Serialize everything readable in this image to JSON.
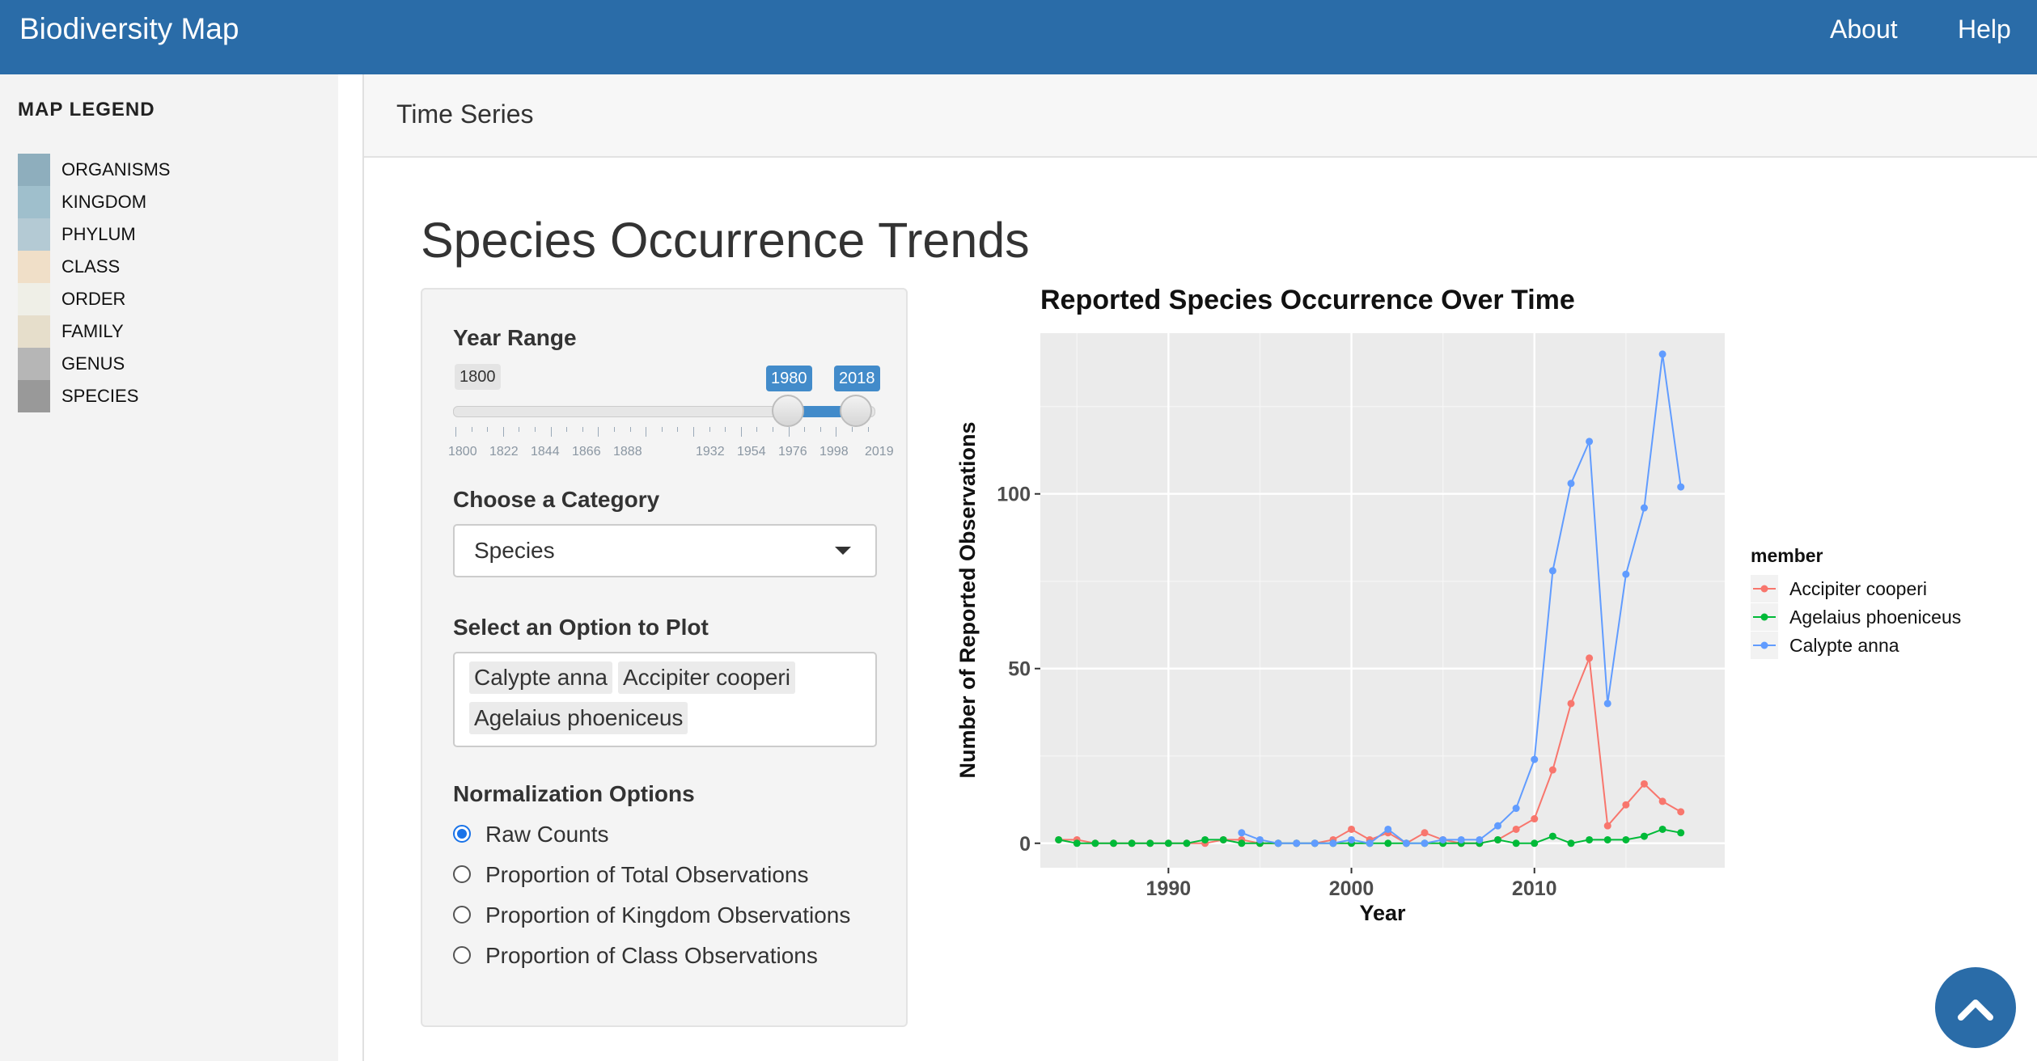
{
  "navbar": {
    "brand": "Biodiversity Map",
    "links": [
      "About",
      "Help"
    ]
  },
  "legend": {
    "title": "MAP LEGEND",
    "items": [
      {
        "label": "ORGANISMS",
        "color": "#8eaebd"
      },
      {
        "label": "KINGDOM",
        "color": "#9fbfcc"
      },
      {
        "label": "PHYLUM",
        "color": "#b4cad4"
      },
      {
        "label": "CLASS",
        "color": "#f0dfc8"
      },
      {
        "label": "ORDER",
        "color": "#efefe7"
      },
      {
        "label": "FAMILY",
        "color": "#e6decb"
      },
      {
        "label": "GENUS",
        "color": "#b6b6b6"
      },
      {
        "label": "SPECIES",
        "color": "#999999"
      }
    ]
  },
  "tab": {
    "label": "Time Series"
  },
  "page": {
    "title": "Species Occurrence Trends"
  },
  "controls": {
    "year_range": {
      "label": "Year Range",
      "min_label": "1800",
      "from": "1980",
      "to": "2018",
      "tick_labels": [
        "1800",
        "1822",
        "1844",
        "1866",
        "1888",
        "1932",
        "1954",
        "1976",
        "1998",
        "2019"
      ]
    },
    "category": {
      "label": "Choose a Category",
      "value": "Species"
    },
    "options": {
      "label": "Select an Option to Plot",
      "selected": [
        "Calypte anna",
        "Accipiter cooperi",
        "Agelaius phoeniceus"
      ]
    },
    "normalization": {
      "label": "Normalization Options",
      "selected_index": 0,
      "choices": [
        "Raw Counts",
        "Proportion of Total Observations",
        "Proportion of Kingdom Observations",
        "Proportion of Class Observations"
      ]
    }
  },
  "chart_data": {
    "type": "line",
    "title": "Reported Species Occurrence Over Time",
    "xlabel": "Year",
    "ylabel": "Number of Reported Observations",
    "xlim": [
      1983,
      2020.4
    ],
    "ylim": [
      -7,
      146
    ],
    "xticks": [
      1990,
      2000,
      2010
    ],
    "yticks": [
      0,
      50,
      100
    ],
    "grid": true,
    "legend_title": "member",
    "legend_position": "right",
    "series": [
      {
        "name": "Accipiter cooperi",
        "color": "#f8766d",
        "points": [
          [
            1984,
            1
          ],
          [
            1985,
            1
          ],
          [
            1986,
            0
          ],
          [
            1987,
            0
          ],
          [
            1988,
            0
          ],
          [
            1989,
            0
          ],
          [
            1990,
            0
          ],
          [
            1991,
            0
          ],
          [
            1992,
            0
          ],
          [
            1993,
            1
          ],
          [
            1994,
            1
          ],
          [
            1995,
            0
          ],
          [
            1996,
            0
          ],
          [
            1997,
            0
          ],
          [
            1998,
            0
          ],
          [
            1999,
            1
          ],
          [
            2000,
            4
          ],
          [
            2001,
            1
          ],
          [
            2002,
            3
          ],
          [
            2003,
            0
          ],
          [
            2004,
            3
          ],
          [
            2005,
            1
          ],
          [
            2006,
            0
          ],
          [
            2007,
            0
          ],
          [
            2008,
            1
          ],
          [
            2009,
            4
          ],
          [
            2010,
            7
          ],
          [
            2011,
            21
          ],
          [
            2012,
            40
          ],
          [
            2013,
            53
          ],
          [
            2014,
            5
          ],
          [
            2015,
            11
          ],
          [
            2016,
            17
          ],
          [
            2017,
            12
          ],
          [
            2018,
            9
          ]
        ]
      },
      {
        "name": "Agelaius phoeniceus",
        "color": "#00ba38",
        "points": [
          [
            1984,
            1
          ],
          [
            1985,
            0
          ],
          [
            1986,
            0
          ],
          [
            1987,
            0
          ],
          [
            1988,
            0
          ],
          [
            1989,
            0
          ],
          [
            1990,
            0
          ],
          [
            1991,
            0
          ],
          [
            1992,
            1
          ],
          [
            1993,
            1
          ],
          [
            1994,
            0
          ],
          [
            1995,
            0
          ],
          [
            1996,
            0
          ],
          [
            1997,
            0
          ],
          [
            1998,
            0
          ],
          [
            1999,
            0
          ],
          [
            2000,
            0
          ],
          [
            2001,
            0
          ],
          [
            2002,
            0
          ],
          [
            2003,
            0
          ],
          [
            2004,
            0
          ],
          [
            2005,
            0
          ],
          [
            2006,
            0
          ],
          [
            2007,
            0
          ],
          [
            2008,
            1
          ],
          [
            2009,
            0
          ],
          [
            2010,
            0
          ],
          [
            2011,
            2
          ],
          [
            2012,
            0
          ],
          [
            2013,
            1
          ],
          [
            2014,
            1
          ],
          [
            2015,
            1
          ],
          [
            2016,
            2
          ],
          [
            2017,
            4
          ],
          [
            2018,
            3
          ]
        ]
      },
      {
        "name": "Calypte anna",
        "color": "#619cff",
        "points": [
          [
            1994,
            3
          ],
          [
            1995,
            1
          ],
          [
            1996,
            0
          ],
          [
            1997,
            0
          ],
          [
            1998,
            0
          ],
          [
            1999,
            0
          ],
          [
            2000,
            1
          ],
          [
            2001,
            0
          ],
          [
            2002,
            4
          ],
          [
            2003,
            0
          ],
          [
            2004,
            0
          ],
          [
            2005,
            1
          ],
          [
            2006,
            1
          ],
          [
            2007,
            1
          ],
          [
            2008,
            5
          ],
          [
            2009,
            10
          ],
          [
            2010,
            24
          ],
          [
            2011,
            78
          ],
          [
            2012,
            103
          ],
          [
            2013,
            115
          ],
          [
            2014,
            40
          ],
          [
            2015,
            77
          ],
          [
            2016,
            96
          ],
          [
            2017,
            140
          ],
          [
            2018,
            102
          ]
        ]
      }
    ]
  }
}
